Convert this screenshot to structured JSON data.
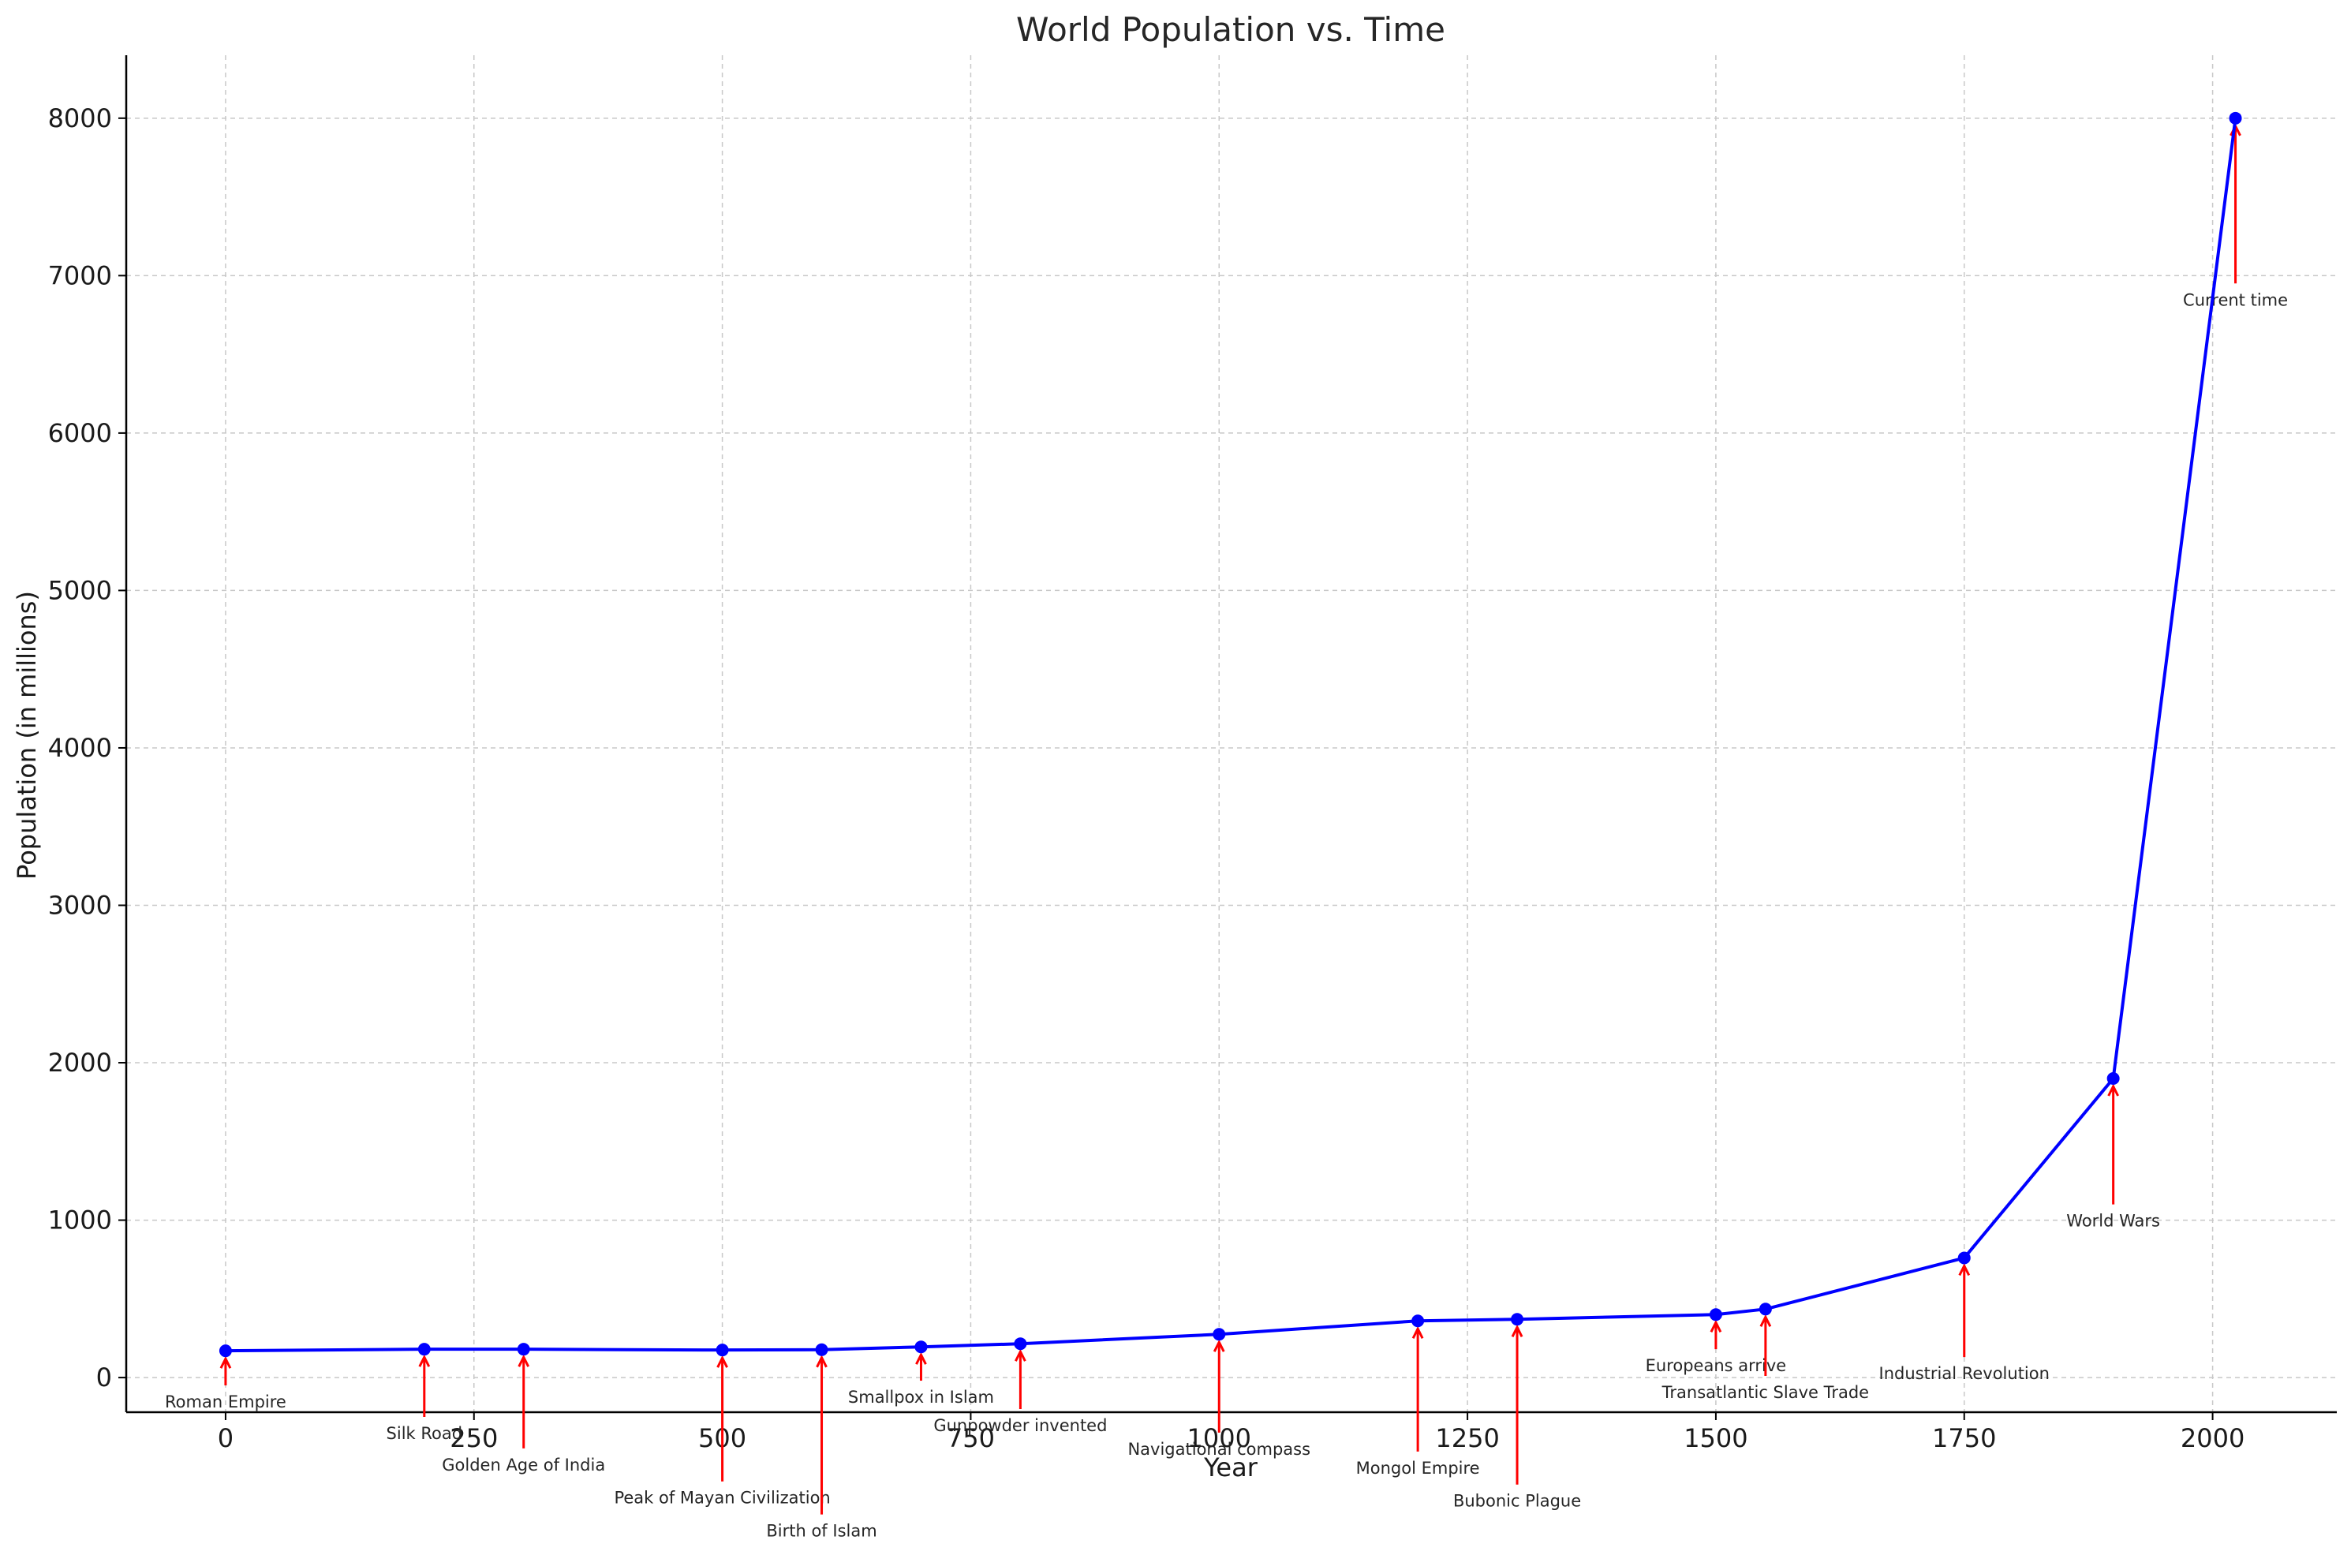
{
  "chart_data": {
    "type": "line",
    "title": "World Population vs. Time",
    "xlabel": "Year",
    "ylabel": "Population (in millions)",
    "xlim": [
      -100,
      2125
    ],
    "ylim": [
      -220,
      8400
    ],
    "grid": true,
    "x_ticks": [
      0,
      250,
      500,
      750,
      1000,
      1250,
      1500,
      1750,
      2000
    ],
    "y_ticks": [
      0,
      1000,
      2000,
      3000,
      4000,
      5000,
      6000,
      7000,
      8000
    ],
    "series": [
      {
        "color": "#0000ff",
        "x": [
          0,
          200,
          300,
          500,
          600,
          700,
          800,
          1000,
          1200,
          1300,
          1500,
          1550,
          1750,
          1900,
          2023
        ],
        "values": [
          170,
          180,
          180,
          175,
          177,
          195,
          215,
          275,
          360,
          370,
          400,
          435,
          760,
          1900,
          8000
        ]
      }
    ],
    "annotation_color": "#ff0000",
    "annotations": [
      {
        "text": "Roman Empire",
        "x": 0,
        "y": 170,
        "text_y": -150
      },
      {
        "text": "Silk Road",
        "x": 200,
        "y": 180,
        "text_y": -350
      },
      {
        "text": "Golden Age of India",
        "x": 300,
        "y": 180,
        "text_y": -550
      },
      {
        "text": "Peak of Mayan Civilization",
        "x": 500,
        "y": 175,
        "text_y": -760
      },
      {
        "text": "Birth of Islam",
        "x": 600,
        "y": 177,
        "text_y": -970
      },
      {
        "text": "Smallpox in Islam",
        "x": 700,
        "y": 195,
        "text_y": -120
      },
      {
        "text": "Gunpowder invented",
        "x": 800,
        "y": 215,
        "text_y": -300
      },
      {
        "text": "Navigational compass",
        "x": 1000,
        "y": 275,
        "text_y": -450
      },
      {
        "text": "Mongol Empire",
        "x": 1200,
        "y": 360,
        "text_y": -570
      },
      {
        "text": "Bubonic Plague",
        "x": 1300,
        "y": 370,
        "text_y": -780
      },
      {
        "text": "Europeans arrive",
        "x": 1500,
        "y": 400,
        "text_y": 80
      },
      {
        "text": "Transatlantic Slave Trade",
        "x": 1550,
        "y": 435,
        "text_y": -90
      },
      {
        "text": "Industrial Revolution",
        "x": 1750,
        "y": 760,
        "text_y": 30
      },
      {
        "text": "World Wars",
        "x": 1900,
        "y": 1900,
        "text_y": 1000
      },
      {
        "text": "Current time",
        "x": 2023,
        "y": 8000,
        "text_y": 6850
      }
    ]
  }
}
